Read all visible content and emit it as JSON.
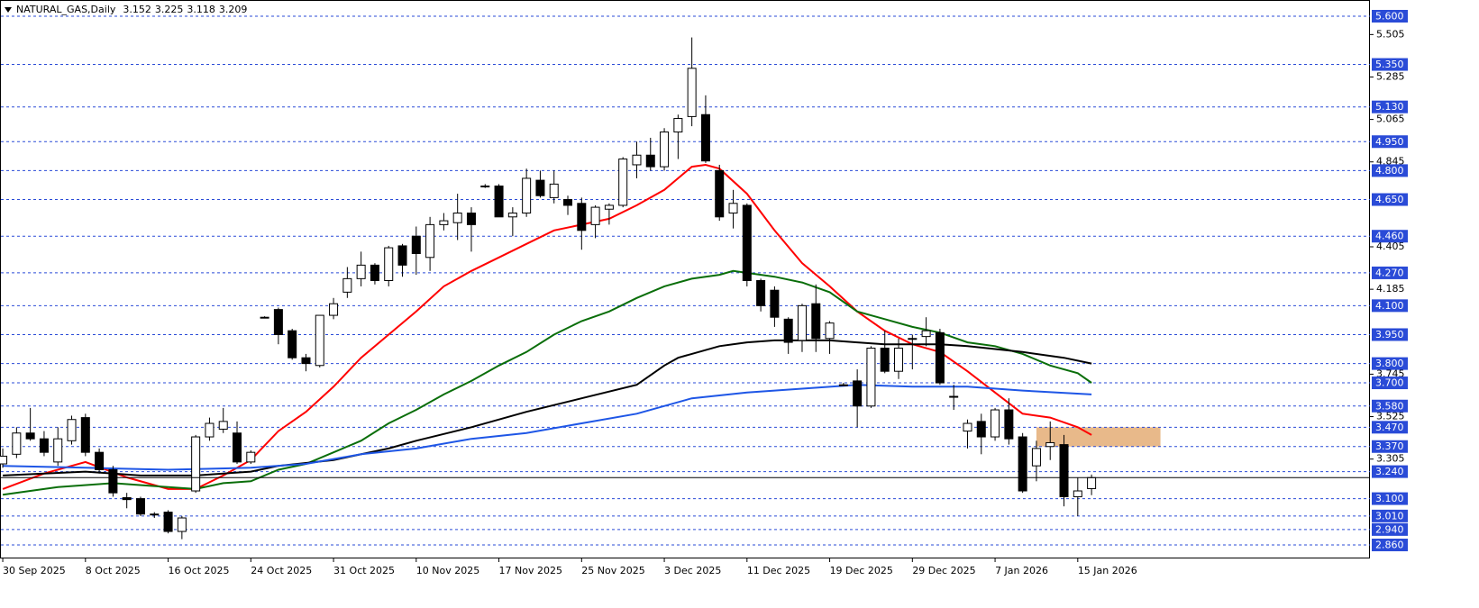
{
  "chart_data": {
    "type": "candlestick",
    "title": "NATURAL_GAS,Daily",
    "categories": [
      "30 Sep 2025",
      null,
      null,
      null,
      null,
      null,
      "8 Oct 2025",
      null,
      null,
      null,
      null,
      null,
      "16 Oct 2025",
      null,
      null,
      null,
      null,
      null,
      "24 Oct 2025",
      null,
      null,
      null,
      null,
      null,
      "31 Oct 2025",
      null,
      null,
      null,
      null,
      null,
      "10 Nov 2025",
      null,
      null,
      null,
      null,
      null,
      "17 Nov 2025",
      null,
      null,
      null,
      null,
      null,
      "25 Nov 2025",
      null,
      null,
      null,
      null,
      null,
      "3 Dec 2025",
      null,
      null,
      null,
      null,
      null,
      "11 Dec 2025",
      null,
      null,
      null,
      null,
      null,
      "19 Dec 2025",
      null,
      null,
      null,
      null,
      null,
      "29 Dec 2025",
      null,
      null,
      null,
      null,
      null,
      "7 Jan 2026",
      null,
      null,
      null,
      null,
      null,
      "15 Jan 2026",
      null
    ],
    "candles": {
      "open": [
        3.28,
        3.33,
        3.44,
        3.41,
        3.29,
        3.4,
        3.52,
        3.34,
        3.25,
        3.105,
        3.1,
        3.02,
        3.03,
        2.93,
        3.14,
        3.42,
        3.46,
        3.44,
        3.29,
        4.04,
        4.08,
        3.97,
        3.83,
        3.79,
        4.05,
        4.17,
        4.24,
        4.31,
        4.23,
        4.41,
        4.46,
        4.35,
        4.52,
        4.53,
        4.58,
        4.72,
        4.72,
        4.56,
        4.58,
        4.75,
        4.66,
        4.65,
        4.63,
        4.52,
        4.6,
        4.62,
        4.83,
        4.88,
        4.82,
        5.0,
        5.08,
        5.09,
        4.8,
        4.58,
        4.62,
        4.23,
        4.18,
        4.03,
        3.92,
        4.11,
        3.93,
        3.69,
        3.71,
        3.58,
        3.88,
        3.76,
        3.93,
        3.94,
        3.96,
        3.63,
        3.45,
        3.5,
        3.42,
        3.56,
        3.42,
        3.27,
        3.37,
        3.38,
        3.11,
        3.152
      ],
      "high": [
        3.36,
        3.47,
        3.57,
        3.45,
        3.47,
        3.53,
        3.54,
        3.36,
        3.27,
        3.13,
        3.11,
        3.03,
        3.04,
        3.01,
        3.43,
        3.52,
        3.57,
        3.5,
        3.35,
        4.045,
        4.09,
        3.98,
        3.85,
        4.05,
        4.14,
        4.3,
        4.38,
        4.32,
        4.41,
        4.42,
        4.51,
        4.56,
        4.58,
        4.68,
        4.61,
        4.73,
        4.73,
        4.61,
        4.81,
        4.8,
        4.8,
        4.67,
        4.66,
        4.62,
        4.63,
        4.87,
        4.95,
        4.97,
        5.02,
        5.09,
        5.49,
        5.19,
        4.83,
        4.7,
        4.63,
        4.24,
        4.2,
        4.04,
        4.11,
        4.21,
        4.02,
        3.7,
        3.77,
        3.89,
        3.97,
        3.93,
        3.95,
        4.04,
        3.98,
        3.69,
        3.51,
        3.54,
        3.57,
        3.62,
        3.44,
        3.4,
        3.5,
        3.43,
        3.21,
        3.225
      ],
      "low": [
        3.26,
        3.31,
        3.4,
        3.32,
        3.27,
        3.38,
        3.32,
        3.23,
        3.11,
        3.05,
        3.01,
        3.0,
        2.92,
        2.89,
        3.13,
        3.4,
        3.44,
        3.28,
        3.28,
        4.035,
        3.9,
        3.82,
        3.76,
        3.78,
        4.03,
        4.14,
        4.2,
        4.21,
        4.2,
        4.25,
        4.26,
        4.28,
        4.49,
        4.44,
        4.38,
        4.71,
        4.56,
        4.46,
        4.56,
        4.66,
        4.63,
        4.57,
        4.39,
        4.45,
        4.52,
        4.61,
        4.76,
        4.8,
        4.8,
        4.86,
        5.03,
        4.84,
        4.54,
        4.5,
        4.2,
        4.07,
        3.99,
        3.85,
        3.86,
        3.86,
        3.85,
        3.685,
        3.47,
        3.57,
        3.75,
        3.72,
        3.77,
        3.89,
        3.69,
        3.56,
        3.36,
        3.33,
        3.4,
        3.38,
        3.13,
        3.19,
        3.3,
        3.06,
        3.01,
        3.118
      ],
      "close": [
        3.32,
        3.44,
        3.41,
        3.34,
        3.41,
        3.51,
        3.34,
        3.25,
        3.13,
        3.095,
        3.02,
        3.02,
        2.93,
        3.0,
        3.42,
        3.49,
        3.5,
        3.29,
        3.34,
        4.04,
        3.95,
        3.83,
        3.8,
        4.05,
        4.11,
        4.24,
        4.31,
        4.23,
        4.4,
        4.31,
        4.37,
        4.52,
        4.54,
        4.58,
        4.52,
        4.72,
        4.56,
        4.58,
        4.76,
        4.67,
        4.73,
        4.62,
        4.49,
        4.61,
        4.62,
        4.86,
        4.88,
        4.82,
        5.0,
        5.07,
        5.33,
        4.85,
        4.56,
        4.63,
        4.23,
        4.1,
        4.04,
        3.91,
        4.1,
        3.93,
        4.01,
        3.69,
        3.58,
        3.88,
        3.76,
        3.88,
        3.93,
        3.97,
        3.7,
        3.63,
        3.49,
        3.42,
        3.56,
        3.41,
        3.14,
        3.36,
        3.39,
        3.11,
        3.14,
        3.209
      ]
    },
    "bull_color": "#ffffff",
    "bear_color": "#000000",
    "moving_averages": [
      {
        "color": "#ff0000",
        "x": [
          0,
          3,
          6,
          9,
          12,
          14,
          16,
          18,
          20,
          22,
          24,
          26,
          28,
          30,
          32,
          34,
          36,
          38,
          40,
          42,
          44,
          46,
          48,
          50,
          51,
          52,
          54,
          56,
          58,
          60,
          62,
          64,
          66,
          68,
          70,
          72,
          74,
          76,
          78,
          79
        ],
        "values": [
          3.15,
          3.23,
          3.29,
          3.21,
          3.15,
          3.15,
          3.22,
          3.3,
          3.45,
          3.55,
          3.68,
          3.83,
          3.95,
          4.07,
          4.2,
          4.28,
          4.35,
          4.42,
          4.49,
          4.52,
          4.55,
          4.62,
          4.7,
          4.82,
          4.83,
          4.81,
          4.68,
          4.49,
          4.32,
          4.2,
          4.07,
          3.97,
          3.9,
          3.86,
          3.76,
          3.65,
          3.54,
          3.52,
          3.47,
          3.43
        ]
      },
      {
        "color": "#0a6e0a",
        "x": [
          0,
          4,
          8,
          12,
          14,
          16,
          18,
          20,
          22,
          24,
          26,
          28,
          30,
          32,
          34,
          36,
          38,
          40,
          42,
          44,
          46,
          48,
          50,
          52,
          53,
          56,
          58,
          60,
          62,
          64,
          66,
          68,
          70,
          72,
          74,
          76,
          78,
          79
        ],
        "values": [
          3.12,
          3.16,
          3.18,
          3.16,
          3.15,
          3.18,
          3.19,
          3.25,
          3.28,
          3.34,
          3.4,
          3.49,
          3.56,
          3.64,
          3.71,
          3.79,
          3.86,
          3.95,
          4.02,
          4.07,
          4.14,
          4.2,
          4.24,
          4.26,
          4.28,
          4.25,
          4.22,
          4.17,
          4.07,
          4.03,
          3.99,
          3.96,
          3.91,
          3.89,
          3.85,
          3.79,
          3.75,
          3.7
        ]
      },
      {
        "color": "#000000",
        "x": [
          0,
          6,
          10,
          14,
          18,
          20,
          24,
          28,
          30,
          34,
          38,
          42,
          46,
          48,
          49,
          50,
          52,
          54,
          56,
          60,
          62,
          64,
          66,
          68,
          70,
          74,
          77,
          79
        ],
        "values": [
          3.22,
          3.24,
          3.22,
          3.22,
          3.24,
          3.27,
          3.3,
          3.36,
          3.4,
          3.47,
          3.55,
          3.62,
          3.69,
          3.79,
          3.83,
          3.85,
          3.89,
          3.91,
          3.92,
          3.92,
          3.91,
          3.9,
          3.9,
          3.9,
          3.89,
          3.86,
          3.83,
          3.8
        ]
      },
      {
        "color": "#1e56e6",
        "x": [
          0,
          6,
          12,
          18,
          22,
          26,
          30,
          34,
          38,
          42,
          46,
          50,
          54,
          58,
          62,
          66,
          70,
          74,
          79
        ],
        "values": [
          3.27,
          3.26,
          3.25,
          3.26,
          3.28,
          3.33,
          3.36,
          3.41,
          3.44,
          3.49,
          3.54,
          3.62,
          3.65,
          3.67,
          3.69,
          3.68,
          3.68,
          3.66,
          3.64
        ]
      }
    ],
    "zone": {
      "from": 3.37,
      "to": 3.47,
      "x": [
        75,
        84
      ],
      "color": "#e8b98a"
    },
    "levels": [
      {
        "value": 5.6,
        "label": "5.600"
      },
      {
        "value": 5.35,
        "label": "5.350"
      },
      {
        "value": 5.13,
        "label": "5.130"
      },
      {
        "value": 4.95,
        "label": "4.950"
      },
      {
        "value": 4.8,
        "label": "4.800"
      },
      {
        "value": 4.65,
        "label": "4.650"
      },
      {
        "value": 4.46,
        "label": "4.460"
      },
      {
        "value": 4.27,
        "label": "4.270"
      },
      {
        "value": 4.1,
        "label": "4.100"
      },
      {
        "value": 3.95,
        "label": "3.950"
      },
      {
        "value": 3.8,
        "label": "3.800"
      },
      {
        "value": 3.7,
        "label": "3.700"
      },
      {
        "value": 3.58,
        "label": "3.580"
      },
      {
        "value": 3.47,
        "label": "3.470"
      },
      {
        "value": 3.37,
        "label": "3.370"
      },
      {
        "value": 3.24,
        "label": "3.240"
      },
      {
        "value": 3.1,
        "label": "3.100"
      },
      {
        "value": 3.01,
        "label": "3.010"
      },
      {
        "value": 2.94,
        "label": "2.940"
      },
      {
        "value": 2.86,
        "label": "2.860"
      }
    ],
    "level_color": "#2a4bd7",
    "xlim": [
      -0.2,
      99.2
    ],
    "ylim": [
      2.79,
      5.67
    ],
    "yticks": [
      5.505,
      5.285,
      5.065,
      4.845,
      4.405,
      4.185,
      3.745,
      3.525,
      3.305
    ]
  }
}
